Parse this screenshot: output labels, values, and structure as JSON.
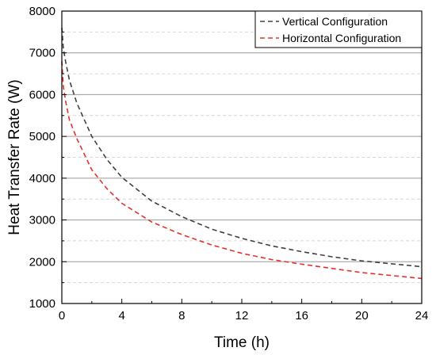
{
  "chart_data": {
    "type": "line",
    "xlabel": "Time (h)",
    "ylabel": "Heat Transfer Rate (W)",
    "xlim": [
      0,
      24
    ],
    "ylim": [
      1000,
      8000
    ],
    "x_ticks": [
      0,
      4,
      8,
      12,
      16,
      20,
      24
    ],
    "x_tick_labels": [
      "0",
      "4",
      "8",
      "12",
      "16",
      "20",
      "24"
    ],
    "y_ticks": [
      1000,
      2000,
      3000,
      4000,
      5000,
      6000,
      7000,
      8000
    ],
    "y_tick_labels": [
      "1000",
      "2000",
      "3000",
      "4000",
      "5000",
      "6000",
      "7000",
      "8000"
    ],
    "grid": {
      "major_y": true,
      "minor_y": true,
      "x": false
    },
    "legend_position": "top-right",
    "series": [
      {
        "name": "Vertical Configuration",
        "color": "#404040",
        "dash": "dashed",
        "x": [
          0,
          0.1,
          0.25,
          0.5,
          1,
          2,
          3,
          4,
          6,
          8,
          10,
          12,
          14,
          16,
          18,
          20,
          22,
          24
        ],
        "y": [
          7600,
          7100,
          6800,
          6350,
          5800,
          5000,
          4450,
          4020,
          3450,
          3080,
          2780,
          2560,
          2380,
          2240,
          2120,
          2020,
          1950,
          1880
        ]
      },
      {
        "name": "Horizontal Configuration",
        "color": "#e8302a",
        "dash": "dashed",
        "x": [
          0,
          0.1,
          0.25,
          0.5,
          1,
          2,
          3,
          4,
          6,
          8,
          10,
          12,
          14,
          16,
          18,
          20,
          22,
          24
        ],
        "y": [
          6800,
          6200,
          5850,
          5400,
          4950,
          4200,
          3750,
          3400,
          2950,
          2650,
          2400,
          2200,
          2050,
          1940,
          1840,
          1740,
          1670,
          1600
        ]
      }
    ]
  }
}
